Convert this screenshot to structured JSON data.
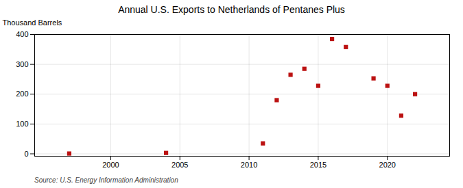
{
  "chart_data": {
    "type": "scatter",
    "title": "Annual U.S. Exports to Netherlands of Pentanes Plus",
    "ylabel": "Thousand Barrels",
    "annotations": [
      "Source: U.S. Energy Information Administration"
    ],
    "x": [
      1997,
      2004,
      2011,
      2012,
      2013,
      2014,
      2015,
      2016,
      2017,
      2019,
      2020,
      2021,
      2022
    ],
    "values": [
      1,
      3,
      35,
      180,
      265,
      285,
      228,
      385,
      358,
      253,
      228,
      128,
      200
    ],
    "xlim": [
      1994.5,
      2024.5
    ],
    "xticks": [
      2000,
      2005,
      2010,
      2015,
      2020
    ],
    "ylim": [
      -8,
      400
    ],
    "yticks": [
      0,
      100,
      200,
      300,
      400
    ],
    "color": "#bb1111",
    "marker": "square",
    "grid": true
  }
}
